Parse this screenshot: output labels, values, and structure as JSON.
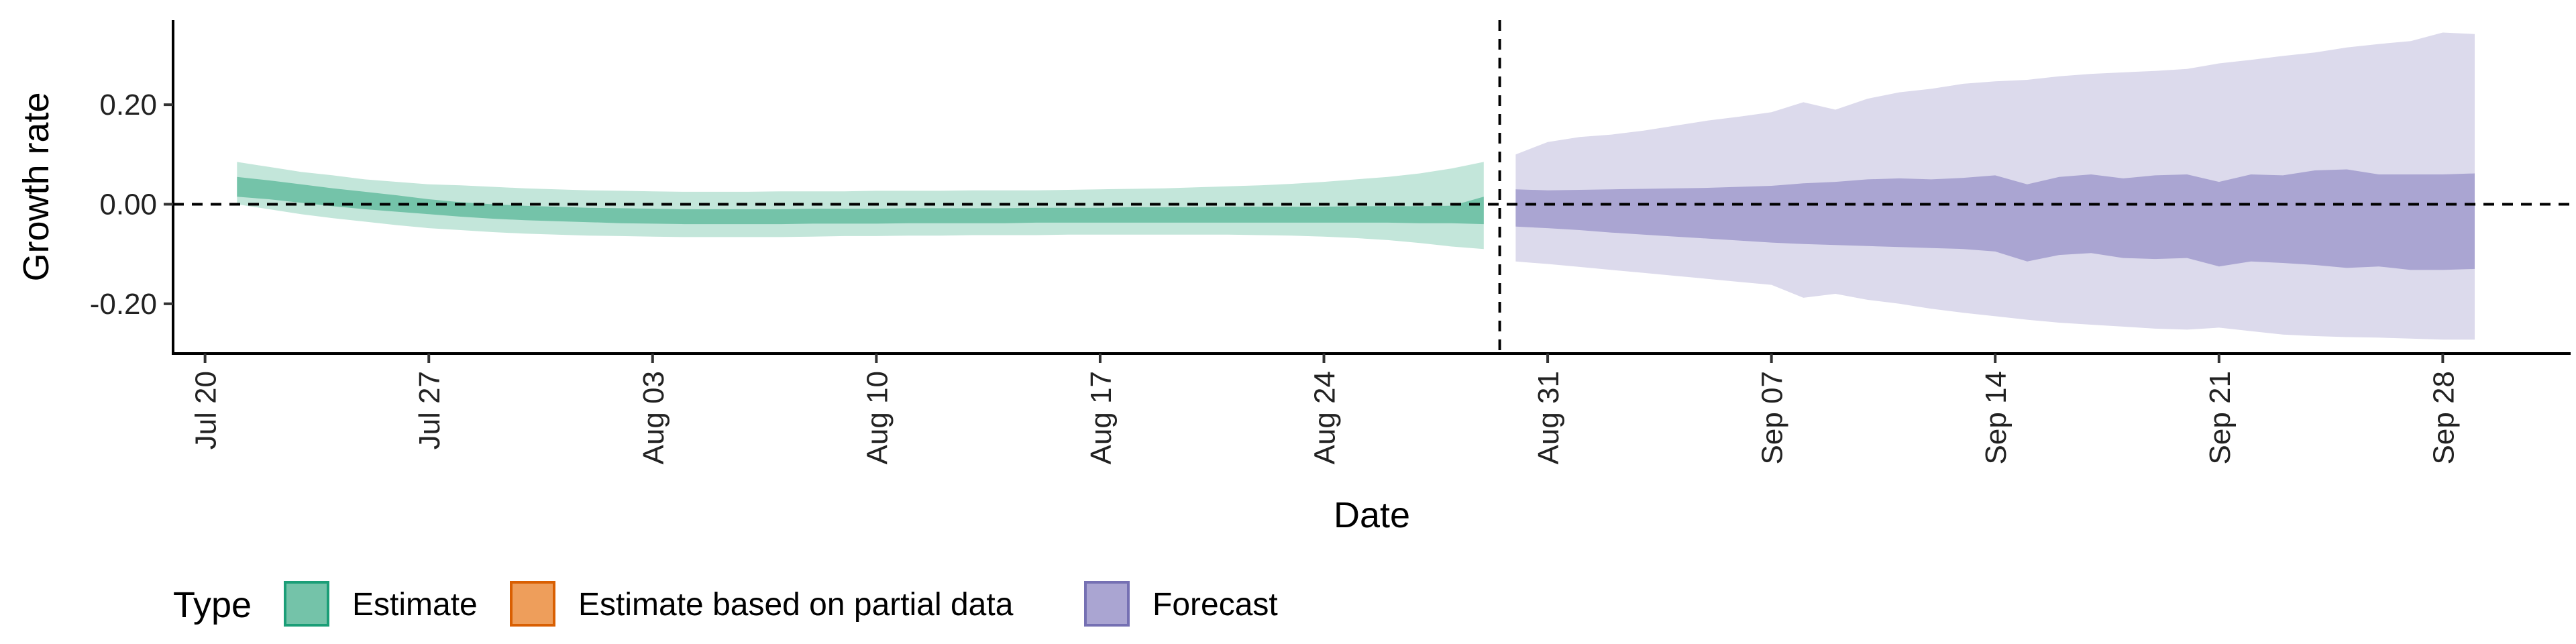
{
  "chart_data": {
    "type": "area",
    "xlabel": "Date",
    "ylabel": "Growth rate",
    "x_range": [
      "2020-07-19",
      "2020-10-02"
    ],
    "ylim": [
      -0.3,
      0.37
    ],
    "y_ticks": [
      -0.2,
      0.0,
      0.2
    ],
    "y_tick_labels": [
      "-0.20",
      "0.00",
      "0.20"
    ],
    "x_ticks": [
      "2020-07-20",
      "2020-07-27",
      "2020-08-03",
      "2020-08-10",
      "2020-08-17",
      "2020-08-24",
      "2020-08-31",
      "2020-09-07",
      "2020-09-14",
      "2020-09-21",
      "2020-09-28"
    ],
    "x_tick_labels": [
      "Jul 20",
      "Jul 27",
      "Aug 03",
      "Aug 10",
      "Aug 17",
      "Aug 24",
      "Aug 31",
      "Sep 07",
      "Sep 14",
      "Sep 21",
      "Sep 28"
    ],
    "hline": 0.0,
    "vline": "2020-08-29T12:00",
    "grid": false,
    "legend": {
      "title": "Type",
      "position": "bottom",
      "entries": [
        {
          "label": "Estimate",
          "fill": "#74c3a9",
          "stroke": "#1b9e77"
        },
        {
          "label": "Estimate based on partial data",
          "fill": "#ee9e5b",
          "stroke": "#d95f02"
        },
        {
          "label": "Forecast",
          "fill": "#aaa5d2",
          "stroke": "#7570b3"
        }
      ]
    },
    "series": [
      {
        "type_key": "Estimate",
        "colors": {
          "outer": "#c3e6da",
          "inner": "#74c3a9"
        },
        "x": [
          "2020-07-21",
          "2020-07-22",
          "2020-07-23",
          "2020-07-24",
          "2020-07-25",
          "2020-07-26",
          "2020-07-27",
          "2020-07-28",
          "2020-07-29",
          "2020-07-30",
          "2020-07-31",
          "2020-08-01",
          "2020-08-02",
          "2020-08-03",
          "2020-08-04",
          "2020-08-05",
          "2020-08-06",
          "2020-08-07",
          "2020-08-08",
          "2020-08-09",
          "2020-08-10",
          "2020-08-11",
          "2020-08-12",
          "2020-08-13",
          "2020-08-14",
          "2020-08-15",
          "2020-08-16",
          "2020-08-17",
          "2020-08-18",
          "2020-08-19",
          "2020-08-20",
          "2020-08-21",
          "2020-08-22",
          "2020-08-23",
          "2020-08-24",
          "2020-08-25",
          "2020-08-26",
          "2020-08-27",
          "2020-08-28",
          "2020-08-29"
        ],
        "outer_upper": [
          0.085,
          0.075,
          0.065,
          0.058,
          0.05,
          0.045,
          0.04,
          0.038,
          0.035,
          0.032,
          0.03,
          0.028,
          0.027,
          0.026,
          0.025,
          0.025,
          0.025,
          0.026,
          0.026,
          0.026,
          0.027,
          0.027,
          0.027,
          0.028,
          0.028,
          0.028,
          0.029,
          0.03,
          0.031,
          0.032,
          0.034,
          0.036,
          0.038,
          0.041,
          0.045,
          0.05,
          0.055,
          0.062,
          0.072,
          0.085
        ],
        "inner_upper": [
          0.055,
          0.048,
          0.04,
          0.032,
          0.025,
          0.018,
          0.01,
          0.004,
          0.0,
          -0.003,
          -0.005,
          -0.007,
          -0.008,
          -0.009,
          -0.01,
          -0.01,
          -0.01,
          -0.01,
          -0.009,
          -0.009,
          -0.009,
          -0.008,
          -0.008,
          -0.008,
          -0.008,
          -0.007,
          -0.007,
          -0.007,
          -0.006,
          -0.006,
          -0.006,
          -0.005,
          -0.005,
          -0.005,
          -0.005,
          -0.004,
          -0.004,
          -0.004,
          -0.003,
          0.015
        ],
        "inner_lower": [
          0.015,
          0.01,
          0.003,
          -0.004,
          -0.01,
          -0.015,
          -0.02,
          -0.025,
          -0.029,
          -0.032,
          -0.034,
          -0.036,
          -0.038,
          -0.039,
          -0.04,
          -0.04,
          -0.04,
          -0.04,
          -0.039,
          -0.039,
          -0.039,
          -0.038,
          -0.038,
          -0.038,
          -0.038,
          -0.037,
          -0.037,
          -0.037,
          -0.037,
          -0.037,
          -0.037,
          -0.037,
          -0.037,
          -0.037,
          -0.037,
          -0.037,
          -0.037,
          -0.038,
          -0.038,
          -0.04
        ],
        "outer_lower": [
          0.0,
          -0.01,
          -0.02,
          -0.028,
          -0.035,
          -0.042,
          -0.048,
          -0.052,
          -0.056,
          -0.059,
          -0.061,
          -0.063,
          -0.064,
          -0.065,
          -0.066,
          -0.066,
          -0.066,
          -0.066,
          -0.065,
          -0.064,
          -0.064,
          -0.063,
          -0.063,
          -0.062,
          -0.062,
          -0.062,
          -0.061,
          -0.061,
          -0.061,
          -0.061,
          -0.061,
          -0.061,
          -0.062,
          -0.063,
          -0.065,
          -0.068,
          -0.072,
          -0.078,
          -0.085,
          -0.09
        ]
      },
      {
        "type_key": "Forecast",
        "colors": {
          "outer": "#dcdaec",
          "inner": "#aaa5d2"
        },
        "x": [
          "2020-08-30",
          "2020-08-31",
          "2020-09-01",
          "2020-09-02",
          "2020-09-03",
          "2020-09-04",
          "2020-09-05",
          "2020-09-06",
          "2020-09-07",
          "2020-09-08",
          "2020-09-09",
          "2020-09-10",
          "2020-09-11",
          "2020-09-12",
          "2020-09-13",
          "2020-09-14",
          "2020-09-15",
          "2020-09-16",
          "2020-09-17",
          "2020-09-18",
          "2020-09-19",
          "2020-09-20",
          "2020-09-21",
          "2020-09-22",
          "2020-09-23",
          "2020-09-24",
          "2020-09-25",
          "2020-09-26",
          "2020-09-27",
          "2020-09-28",
          "2020-09-29"
        ],
        "outer_upper": [
          0.1,
          0.125,
          0.135,
          0.14,
          0.148,
          0.158,
          0.168,
          0.176,
          0.185,
          0.205,
          0.19,
          0.212,
          0.225,
          0.232,
          0.242,
          0.247,
          0.25,
          0.257,
          0.262,
          0.265,
          0.268,
          0.272,
          0.283,
          0.29,
          0.298,
          0.305,
          0.315,
          0.322,
          0.328,
          0.345,
          0.342
        ],
        "inner_upper": [
          0.03,
          0.028,
          0.029,
          0.03,
          0.031,
          0.032,
          0.033,
          0.035,
          0.037,
          0.042,
          0.045,
          0.05,
          0.052,
          0.05,
          0.053,
          0.058,
          0.04,
          0.055,
          0.06,
          0.052,
          0.058,
          0.06,
          0.045,
          0.06,
          0.058,
          0.068,
          0.07,
          0.06,
          0.06,
          0.06,
          0.062
        ],
        "inner_lower": [
          -0.045,
          -0.048,
          -0.052,
          -0.057,
          -0.061,
          -0.065,
          -0.069,
          -0.073,
          -0.077,
          -0.08,
          -0.082,
          -0.084,
          -0.086,
          -0.088,
          -0.09,
          -0.095,
          -0.115,
          -0.102,
          -0.098,
          -0.108,
          -0.11,
          -0.108,
          -0.125,
          -0.115,
          -0.118,
          -0.122,
          -0.128,
          -0.125,
          -0.132,
          -0.132,
          -0.13
        ],
        "outer_lower": [
          -0.115,
          -0.12,
          -0.126,
          -0.132,
          -0.138,
          -0.144,
          -0.15,
          -0.156,
          -0.162,
          -0.188,
          -0.18,
          -0.192,
          -0.2,
          -0.21,
          -0.218,
          -0.225,
          -0.232,
          -0.238,
          -0.242,
          -0.246,
          -0.25,
          -0.252,
          -0.248,
          -0.255,
          -0.262,
          -0.265,
          -0.267,
          -0.268,
          -0.27,
          -0.272,
          -0.272
        ]
      }
    ]
  }
}
